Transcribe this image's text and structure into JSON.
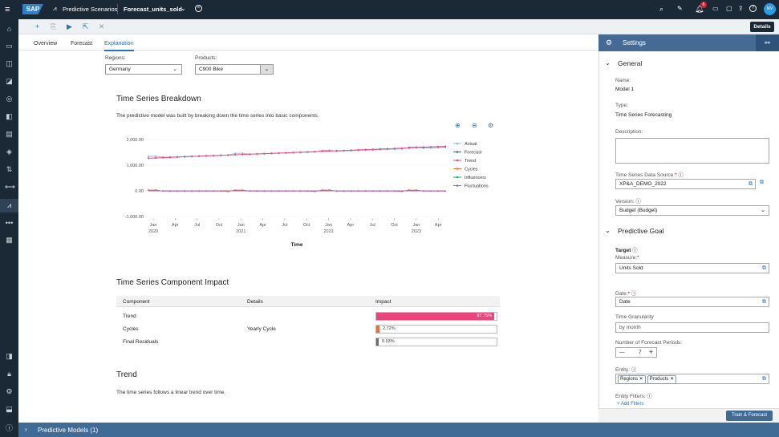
{
  "shell": {
    "logo": "SAP",
    "app_title": "Predictive Scenarios",
    "doc_title": "Forecast_units_sold",
    "notification_count": "6",
    "avatar_initials": "NV"
  },
  "toolbar": {
    "details_label": "Details"
  },
  "tabs": [
    {
      "label": "Overview"
    },
    {
      "label": "Forecast"
    },
    {
      "label": "Explanation"
    }
  ],
  "filters": {
    "regions_label": "Regions:",
    "regions_value": "Germany",
    "products_label": "Products:",
    "products_value": "C900 Bike"
  },
  "breakdown": {
    "title": "Time Series Breakdown",
    "description": "The predictive model was built by breaking down the time series into basic components."
  },
  "chart_data": {
    "type": "line",
    "xlabel": "Time",
    "ylabel": "",
    "ylim": [
      -1000,
      2000
    ],
    "y_ticks": [
      "2,000.00",
      "1,000.00",
      "0.00",
      "-1,000.00"
    ],
    "x_ticks": [
      {
        "m": "Jan",
        "y": "2020"
      },
      {
        "m": "Apr",
        "y": ""
      },
      {
        "m": "Jul",
        "y": ""
      },
      {
        "m": "Oct",
        "y": ""
      },
      {
        "m": "Jan",
        "y": "2021"
      },
      {
        "m": "Apr",
        "y": ""
      },
      {
        "m": "Jul",
        "y": ""
      },
      {
        "m": "Oct",
        "y": ""
      },
      {
        "m": "Jan",
        "y": "2022"
      },
      {
        "m": "Apr",
        "y": ""
      },
      {
        "m": "Jul",
        "y": ""
      },
      {
        "m": "Oct",
        "y": ""
      },
      {
        "m": "Jan",
        "y": "2023"
      },
      {
        "m": "Apr",
        "y": ""
      }
    ],
    "x_count": 42,
    "legend_position": "right",
    "series": [
      {
        "name": "Actual",
        "color": "#8fb8dc",
        "start": 1300,
        "end": 1700
      },
      {
        "name": "Forecast",
        "color": "#456b95",
        "start": null,
        "end": 1730
      },
      {
        "name": "Trend",
        "color": "#e8467c",
        "start": 1270,
        "end": 1730
      },
      {
        "name": "Cycles",
        "color": "#e8743b",
        "start": 30,
        "end": 0
      },
      {
        "name": "Influencers",
        "color": "#19a979",
        "start": 0,
        "end": 0
      },
      {
        "name": "Fluctuations",
        "color": "#945ecf",
        "start": 0,
        "end": 0
      }
    ]
  },
  "impact": {
    "title": "Time Series Component Impact",
    "headers": [
      "Component",
      "Details",
      "Impact"
    ],
    "rows": [
      {
        "component": "Trend",
        "details": "",
        "impact": "97.75%",
        "value": 97.75,
        "color": "#e8467c"
      },
      {
        "component": "Cycles",
        "details": "Yearly Cycle",
        "impact": "2.72%",
        "value": 2.72,
        "color": "#e8743b"
      },
      {
        "component": "Final Residuals",
        "details": "",
        "impact": "0.03%",
        "value": 0.03,
        "color": "#6a6d70"
      }
    ]
  },
  "trend": {
    "title": "Trend",
    "description": "The time series follows a linear trend over time."
  },
  "settings": {
    "title": "Settings",
    "general_title": "General",
    "name_label": "Name:",
    "name_value": "Model 1",
    "type_label": "Type:",
    "type_value": "Time Series Forecasting",
    "description_label": "Description:",
    "datasource_label": "Time Series Data Source:",
    "datasource_value": "XP&A_DEMO_2022",
    "version_label": "Version:",
    "version_value": "Budget (Budget)",
    "predictive_goal_title": "Predictive Goal",
    "target_label": "Target",
    "measure_label": "Measure:",
    "measure_value": "Units Sold",
    "date_label": "Date:",
    "date_value": "Date",
    "granularity_label": "Time Granularity",
    "granularity_value": "by month",
    "periods_label": "Number of Forecast Periods:",
    "periods_value": "7",
    "entity_label": "Entity:",
    "entity_tokens": [
      "Regions",
      "Products"
    ],
    "entity_filters_label": "Entity Filters:",
    "add_filters_label": "Add Filters",
    "train_button": "Train & Forecast"
  },
  "bottom": {
    "label": "Predictive Models (1)"
  }
}
